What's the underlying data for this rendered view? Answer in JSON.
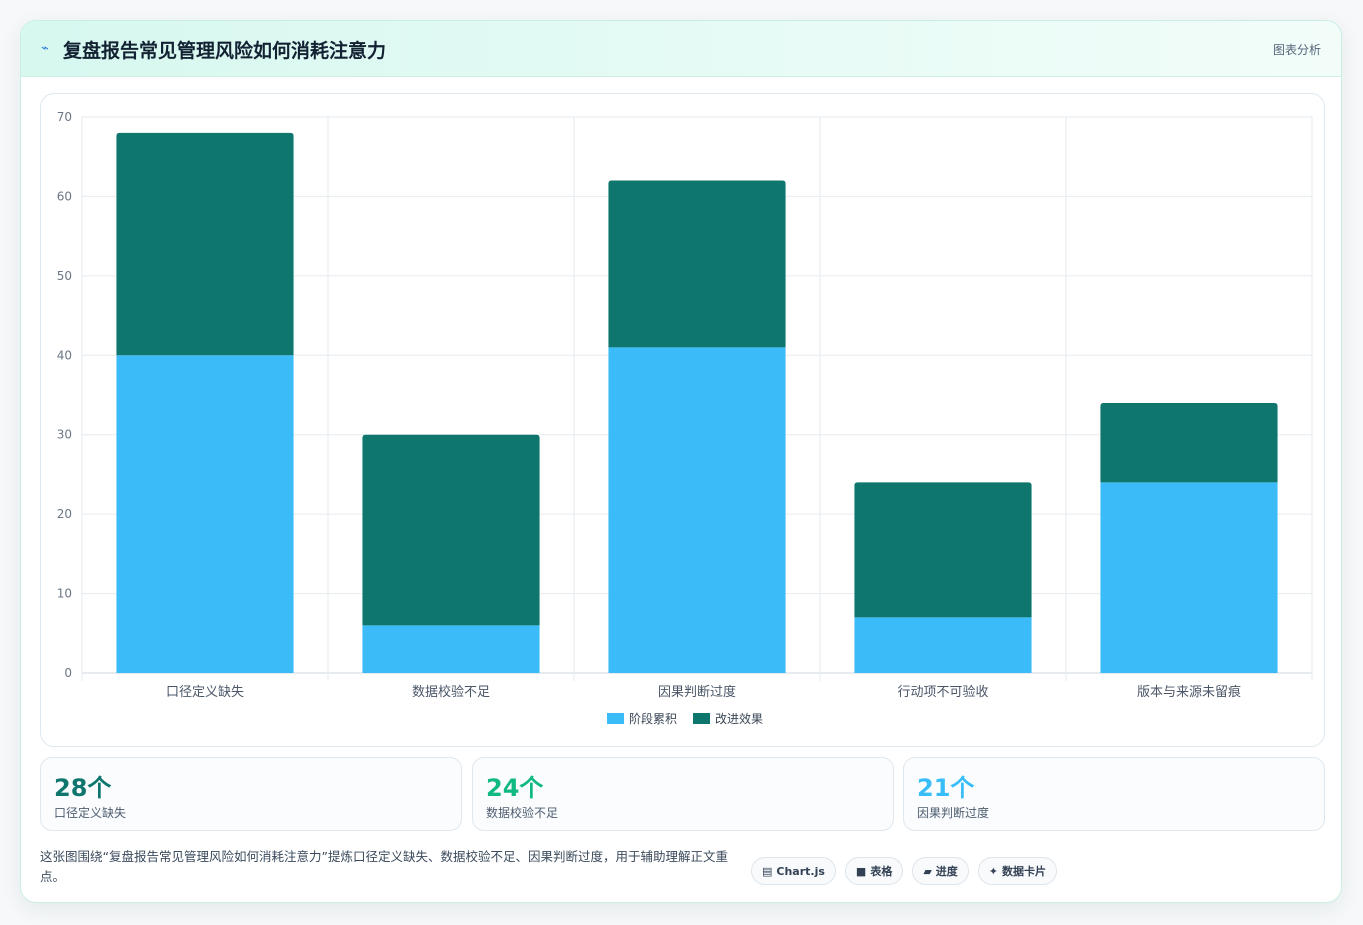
{
  "header": {
    "title": "复盘报告常见管理风险如何消耗注意力",
    "tag": "图表分析",
    "colors": {
      "accent": "#2f7bd6"
    }
  },
  "chart_data": {
    "type": "bar",
    "stacked": true,
    "categories": [
      "口径定义缺失",
      "数据校验不足",
      "因果判断过度",
      "行动项不可验收",
      "版本与来源未留痕"
    ],
    "series": [
      {
        "name": "阶段累积",
        "values": [
          40,
          6,
          41,
          7,
          24
        ],
        "color": "#3bbcf8"
      },
      {
        "name": "改进效果",
        "values": [
          28,
          24,
          21,
          17,
          10
        ],
        "color": "#0f766e"
      }
    ],
    "ylim": [
      0,
      70
    ],
    "yticks": [
      0,
      10,
      20,
      30,
      40,
      50,
      60,
      70
    ],
    "grid": true,
    "legend": "bottom"
  },
  "stats": [
    {
      "value": "28个",
      "label": "口径定义缺失",
      "color": "#0f766e"
    },
    {
      "value": "24个",
      "label": "数据校验不足",
      "color": "#10b981"
    },
    {
      "value": "21个",
      "label": "因果判断过度",
      "color": "#38bdf8"
    }
  ],
  "description": "这张图围绕“复盘报告常见管理风险如何消耗注意力”提炼口径定义缺失、数据校验不足、因果判断过度，用于辅助理解正文重点。",
  "pills": [
    {
      "icon": "chart-icon",
      "glyph": "▤",
      "label": "Chart.js"
    },
    {
      "icon": "table-icon",
      "glyph": "■",
      "label": "表格"
    },
    {
      "icon": "progress-icon",
      "glyph": "▰",
      "label": "进度"
    },
    {
      "icon": "sparkle-icon",
      "glyph": "✦",
      "label": "数据卡片"
    }
  ]
}
